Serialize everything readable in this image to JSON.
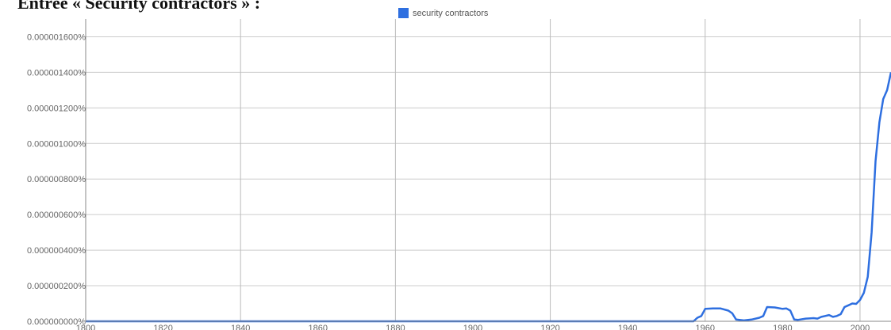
{
  "caption": "Entrée « Security contractors » :",
  "chart_data": {
    "type": "line",
    "title": "",
    "xlabel": "",
    "ylabel": "",
    "xlim": [
      1800,
      2008
    ],
    "ylim": [
      0,
      1.7e-06
    ],
    "x_ticks": [
      1800,
      1820,
      1840,
      1860,
      1880,
      1900,
      1920,
      1940,
      1960,
      1980,
      2000
    ],
    "x_tick_labels": [
      "1800",
      "1820",
      "1840",
      "1860",
      "1880",
      "1900",
      "1920",
      "1940",
      "1960",
      "1980",
      "2000"
    ],
    "y_ticks": [
      0,
      2e-07,
      4e-07,
      6e-07,
      8e-07,
      1e-06,
      1.2e-06,
      1.4e-06,
      1.6e-06
    ],
    "y_tick_labels": [
      "0.000000000%",
      "0.000000200%",
      "0.000000400%",
      "0.000000600%",
      "0.000000800%",
      "0.000001000%",
      "0.000001200%",
      "0.000001400%",
      "0.000001600%"
    ],
    "grid": true,
    "legend_position": "top-center",
    "series": [
      {
        "name": "security contractors",
        "color": "#2e6fe0",
        "points": [
          [
            1800,
            0
          ],
          [
            1957,
            0
          ],
          [
            1958,
            2e-08
          ],
          [
            1959,
            3e-08
          ],
          [
            1960,
            7e-08
          ],
          [
            1962,
            7.2e-08
          ],
          [
            1964,
            7.2e-08
          ],
          [
            1966,
            6e-08
          ],
          [
            1967,
            4.5e-08
          ],
          [
            1968,
            1e-08
          ],
          [
            1970,
            5e-09
          ],
          [
            1972,
            1e-08
          ],
          [
            1974,
            2e-08
          ],
          [
            1975,
            3e-08
          ],
          [
            1976,
            8e-08
          ],
          [
            1978,
            7.8e-08
          ],
          [
            1980,
            7e-08
          ],
          [
            1981,
            7.2e-08
          ],
          [
            1982,
            6e-08
          ],
          [
            1983,
            1e-08
          ],
          [
            1984,
            8e-09
          ],
          [
            1986,
            1.5e-08
          ],
          [
            1988,
            1.8e-08
          ],
          [
            1989,
            1.5e-08
          ],
          [
            1990,
            2.5e-08
          ],
          [
            1991,
            3e-08
          ],
          [
            1992,
            3.5e-08
          ],
          [
            1993,
            2.5e-08
          ],
          [
            1994,
            3e-08
          ],
          [
            1995,
            4e-08
          ],
          [
            1996,
            8e-08
          ],
          [
            1997,
            9e-08
          ],
          [
            1998,
            1e-07
          ],
          [
            1999,
            9.8e-08
          ],
          [
            2000,
            1.2e-07
          ],
          [
            2001,
            1.6e-07
          ],
          [
            2002,
            2.5e-07
          ],
          [
            2003,
            5e-07
          ],
          [
            2004,
            9e-07
          ],
          [
            2005,
            1.12e-06
          ],
          [
            2006,
            1.25e-06
          ],
          [
            2007,
            1.3e-06
          ],
          [
            2008,
            1.4e-06
          ]
        ]
      }
    ]
  }
}
